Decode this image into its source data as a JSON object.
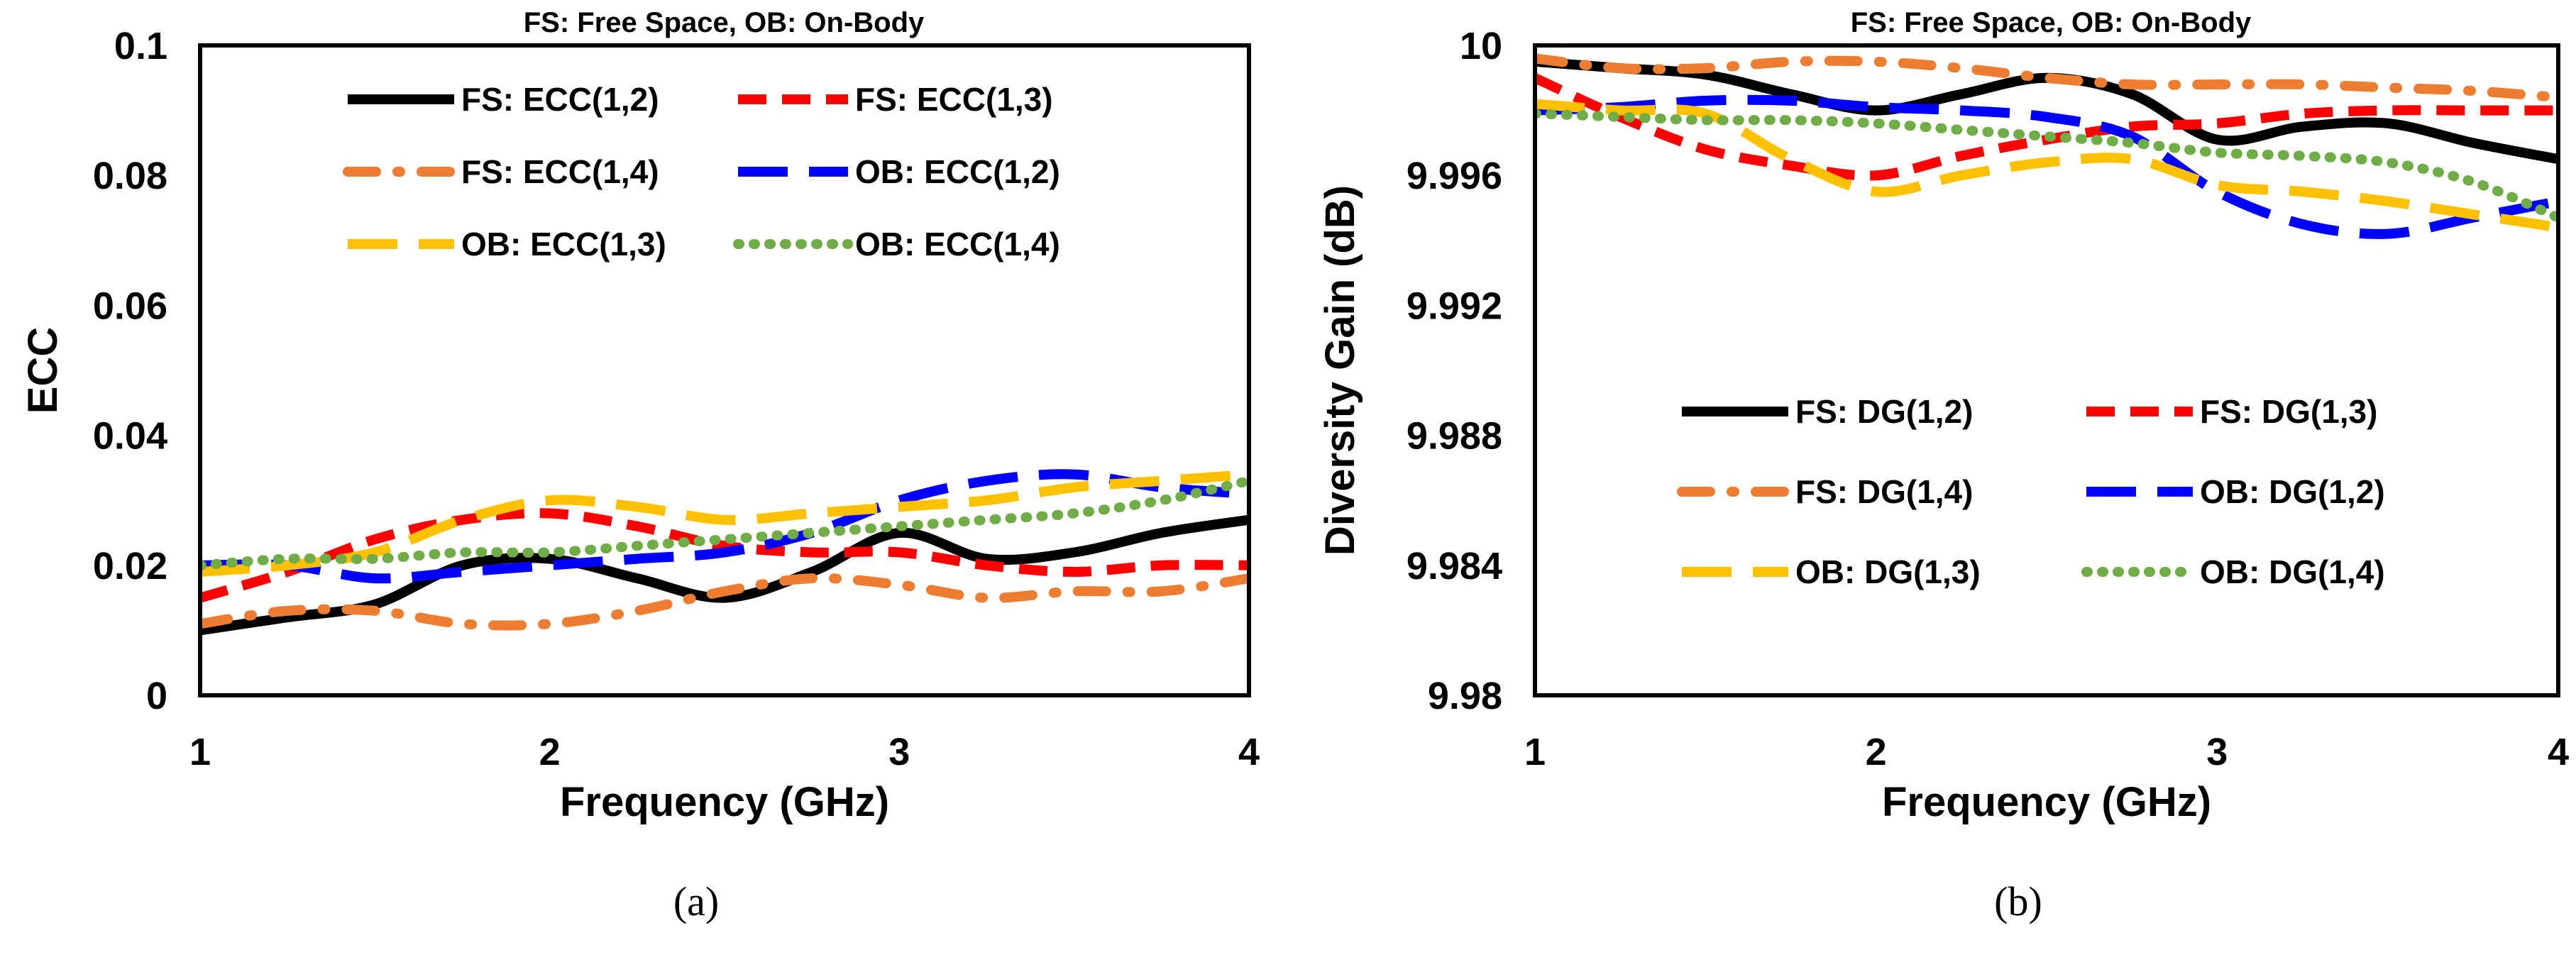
{
  "chart_data": [
    {
      "type": "line",
      "caption": "(a)",
      "title": "FS: Free Space, OB: On-Body",
      "xlabel": "Frequency (GHz)",
      "ylabel": "ECC",
      "xlim": [
        1,
        4
      ],
      "ylim": [
        0,
        0.1
      ],
      "xticks": [
        "1",
        "2",
        "3",
        "4"
      ],
      "yticks": [
        "0",
        "0.02",
        "0.04",
        "0.06",
        "0.08",
        "0.1"
      ],
      "legend_position": "top",
      "x": [
        1.0,
        1.25,
        1.5,
        1.75,
        2.0,
        2.25,
        2.5,
        2.75,
        3.0,
        3.25,
        3.5,
        3.75,
        4.0
      ],
      "series": [
        {
          "name": "FS: ECC(1,2)",
          "color": "#000000",
          "style": "solid",
          "values": [
            0.01,
            0.012,
            0.014,
            0.02,
            0.021,
            0.018,
            0.015,
            0.019,
            0.025,
            0.021,
            0.022,
            0.025,
            0.027
          ]
        },
        {
          "name": "FS: ECC(1,3)",
          "color": "#ff0000",
          "style": "dash",
          "values": [
            0.015,
            0.019,
            0.024,
            0.027,
            0.028,
            0.026,
            0.023,
            0.022,
            0.022,
            0.02,
            0.019,
            0.02,
            0.02
          ]
        },
        {
          "name": "FS: ECC(1,4)",
          "color": "#ed7d31",
          "style": "dashdot",
          "values": [
            0.011,
            0.013,
            0.013,
            0.011,
            0.011,
            0.013,
            0.016,
            0.018,
            0.017,
            0.015,
            0.016,
            0.016,
            0.018
          ]
        },
        {
          "name": "OB: ECC(1,2)",
          "color": "#0000ff",
          "style": "longdash",
          "values": [
            0.02,
            0.02,
            0.018,
            0.019,
            0.02,
            0.021,
            0.022,
            0.025,
            0.03,
            0.033,
            0.034,
            0.032,
            0.031
          ]
        },
        {
          "name": "OB: ECC(1,3)",
          "color": "#ffc000",
          "style": "longdash",
          "values": [
            0.019,
            0.02,
            0.022,
            0.027,
            0.03,
            0.029,
            0.027,
            0.028,
            0.029,
            0.03,
            0.032,
            0.033,
            0.034
          ]
        },
        {
          "name": "OB: ECC(1,4)",
          "color": "#70ad47",
          "style": "dot",
          "values": [
            0.02,
            0.021,
            0.021,
            0.022,
            0.022,
            0.023,
            0.024,
            0.025,
            0.026,
            0.027,
            0.028,
            0.03,
            0.033
          ]
        }
      ]
    },
    {
      "type": "line",
      "caption": "(b)",
      "title": "FS: Free Space, OB: On-Body",
      "xlabel": "Frequency (GHz)",
      "ylabel": "Diversity Gain (dB)",
      "xlim": [
        1,
        4
      ],
      "ylim": [
        9.98,
        10
      ],
      "xticks": [
        "1",
        "2",
        "3",
        "4"
      ],
      "yticks": [
        "9.98",
        "9.984",
        "9.988",
        "9.992",
        "9.996",
        "10"
      ],
      "legend_position": "center",
      "x": [
        1.0,
        1.25,
        1.5,
        1.75,
        2.0,
        2.25,
        2.5,
        2.75,
        3.0,
        3.25,
        3.5,
        3.75,
        4.0
      ],
      "series": [
        {
          "name": "FS: DG(1,2)",
          "color": "#000000",
          "style": "solid",
          "values": [
            9.9995,
            9.9993,
            9.9991,
            9.9985,
            9.998,
            9.9985,
            9.999,
            9.9985,
            9.9971,
            9.9975,
            9.9976,
            9.997,
            9.9965
          ]
        },
        {
          "name": "FS: DG(1,3)",
          "color": "#ff0000",
          "style": "dash",
          "values": [
            9.999,
            9.9978,
            9.9968,
            9.9963,
            9.996,
            9.9966,
            9.9971,
            9.9975,
            9.9976,
            9.9979,
            9.998,
            9.998,
            9.998
          ]
        },
        {
          "name": "FS: DG(1,4)",
          "color": "#ed7d31",
          "style": "dashdot",
          "values": [
            9.9996,
            9.9993,
            9.9993,
            9.9995,
            9.9995,
            9.9993,
            9.999,
            9.9988,
            9.9988,
            9.9988,
            9.9987,
            9.9986,
            9.9984
          ]
        },
        {
          "name": "OB: DG(1,2)",
          "color": "#0000ff",
          "style": "longdash",
          "values": [
            9.998,
            9.9981,
            9.9983,
            9.9983,
            9.9981,
            9.998,
            9.9978,
            9.9972,
            9.9955,
            9.9945,
            9.9942,
            9.9947,
            9.9952
          ]
        },
        {
          "name": "OB: DG(1,3)",
          "color": "#ffc000",
          "style": "longdash",
          "values": [
            9.9982,
            9.998,
            9.9979,
            9.9965,
            9.9955,
            9.996,
            9.9964,
            9.9965,
            9.9957,
            9.9955,
            9.9952,
            9.9948,
            9.9944
          ]
        },
        {
          "name": "OB: DG(1,4)",
          "color": "#70ad47",
          "style": "dot",
          "values": [
            9.9979,
            9.9978,
            9.9977,
            9.9977,
            9.9976,
            9.9974,
            9.9972,
            9.997,
            9.9967,
            9.9966,
            9.9964,
            9.9958,
            9.9947
          ]
        }
      ]
    }
  ]
}
